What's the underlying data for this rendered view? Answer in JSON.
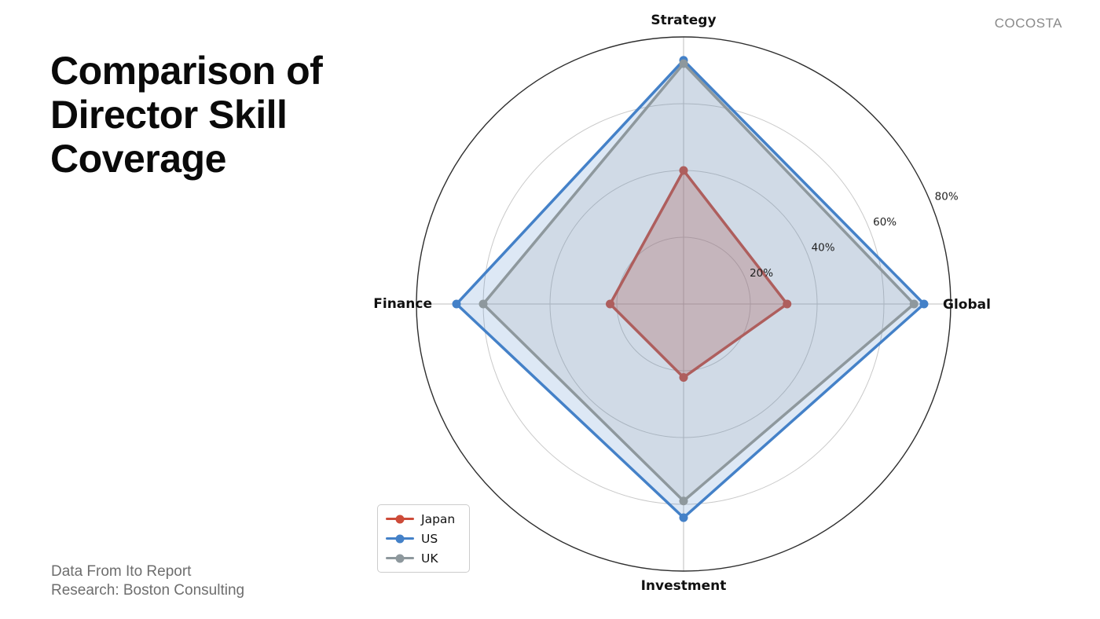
{
  "brand": "COCOSTA",
  "title": "Comparison of\nDirector Skill\nCoverage",
  "footer": {
    "line1": "Data From Ito Report",
    "line2": "Research: Boston Consulting"
  },
  "chart_data": {
    "type": "radar",
    "title": "Comparison of Director Skill Coverage",
    "categories": [
      "Strategy",
      "Global",
      "Investment",
      "Finance"
    ],
    "axis_order": "clockwise-from-top",
    "rmin": 0,
    "rmax": 80,
    "ticks": [
      20,
      40,
      60,
      80
    ],
    "tick_suffix": "%",
    "tick_label_angle_deg": 22.5,
    "grid": true,
    "legend_position": "lower left",
    "grid_color": "#c9c9c9",
    "outer_ring_color": "#2e2e2e",
    "spoke_color": "#bdbdbd",
    "axis_label_color": "#111111",
    "tick_label_color": "#1f1f1f",
    "series": [
      {
        "name": "Japan",
        "color": "#cd4b39",
        "fill_opacity": 0.3,
        "values": [
          40,
          31,
          22,
          22
        ]
      },
      {
        "name": "US",
        "color": "#4481c8",
        "fill_opacity": 0.18,
        "values": [
          73,
          72,
          64,
          68
        ]
      },
      {
        "name": "UK",
        "color": "#8e989d",
        "fill_opacity": 0.16,
        "values": [
          72,
          69,
          59,
          60
        ]
      }
    ]
  }
}
